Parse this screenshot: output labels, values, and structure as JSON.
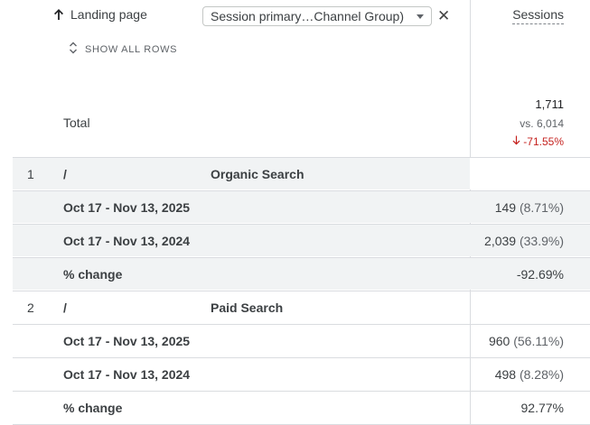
{
  "header": {
    "landing_page_label": "Landing page",
    "dimension_chip": "Session primary…Channel Group)",
    "show_all_rows": "SHOW ALL ROWS",
    "metric": "Sessions"
  },
  "totals": {
    "label": "Total",
    "value": "1,711",
    "compare": "vs. 6,014",
    "change": "-71.55%"
  },
  "rows": [
    {
      "index": "1",
      "path": "/",
      "channel": "Organic Search",
      "current_period": "Oct 17 - Nov 13, 2025",
      "current_value": "149",
      "current_pct": "(8.71%)",
      "previous_period": "Oct 17 - Nov 13, 2024",
      "previous_value": "2,039",
      "previous_pct": "(33.9%)",
      "change_label": "% change",
      "change_value": "-92.69%"
    },
    {
      "index": "2",
      "path": "/",
      "channel": "Paid Search",
      "current_period": "Oct 17 - Nov 13, 2025",
      "current_value": "960",
      "current_pct": "(56.11%)",
      "previous_period": "Oct 17 - Nov 13, 2024",
      "previous_value": "498",
      "previous_pct": "(8.28%)",
      "change_label": "% change",
      "change_value": "92.77%"
    }
  ],
  "colors": {
    "negative": "#c5221f",
    "shaded_row": "#f1f3f4",
    "border": "#dadce0"
  }
}
